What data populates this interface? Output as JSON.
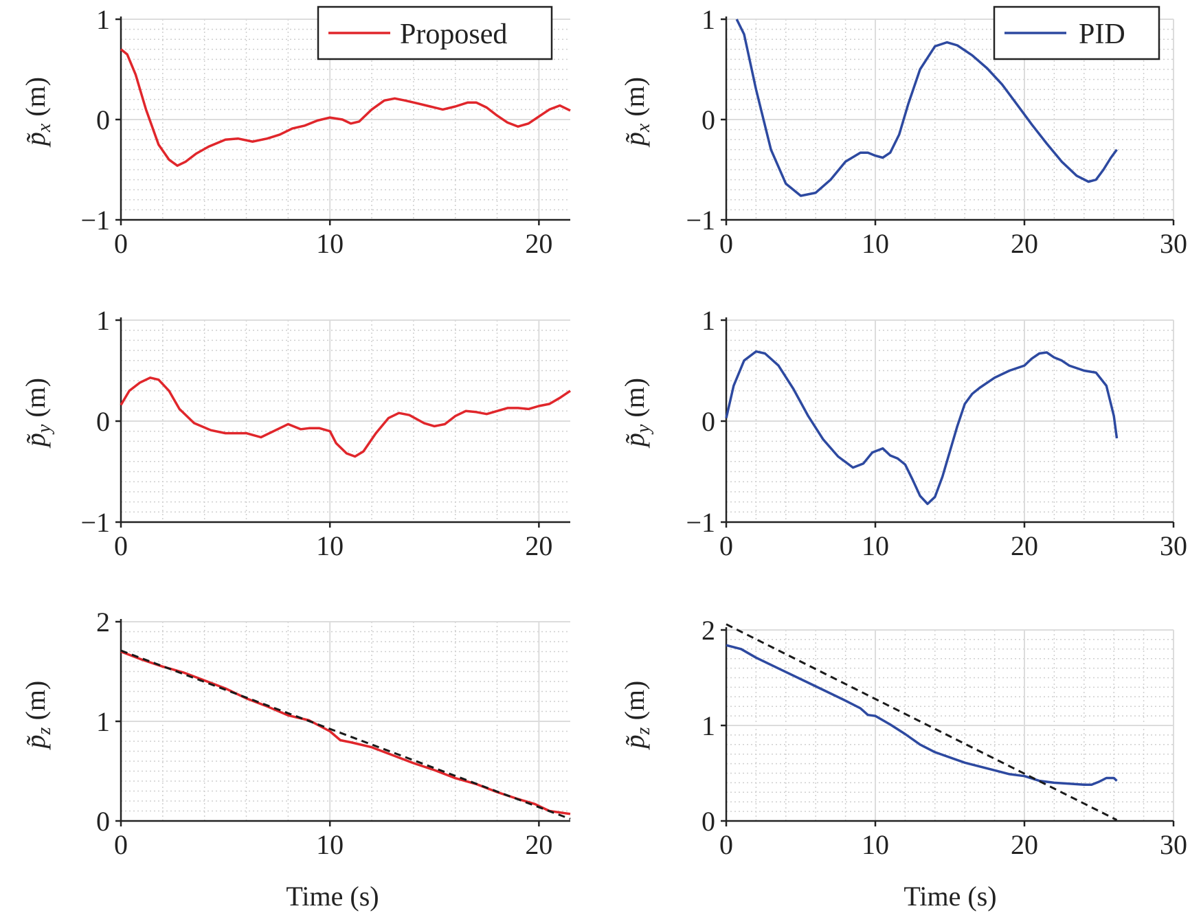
{
  "figure": {
    "legend_proposed": "Proposed",
    "legend_pid": "PID",
    "xlabel": "Time (s)",
    "ylabel_px": "p̃x (m)",
    "ylabel_py": "p̃y (m)",
    "ylabel_pz": "p̃z (m)"
  },
  "colors": {
    "proposed": "#e0262b",
    "pid": "#2d49a0",
    "reference": "#1a1a1a",
    "grid_major": "#dcdcdc",
    "grid_minor": "#cfcfcf"
  },
  "chart_data": [
    {
      "id": "px_proposed",
      "type": "line",
      "xlim": [
        0,
        21.5
      ],
      "ylim": [
        -1,
        1
      ],
      "xticks": [
        0,
        10,
        20
      ],
      "yticks": [
        -1,
        0,
        1
      ],
      "ylabel": "p̃x (m)",
      "xlabel": "",
      "grid": true,
      "legend": {
        "entries": [
          "Proposed"
        ],
        "position": "top-right"
      },
      "series": [
        {
          "name": "Proposed",
          "color": "#e0262b",
          "x": [
            0,
            0.3,
            0.7,
            1.2,
            1.8,
            2.3,
            2.7,
            3.1,
            3.6,
            4.2,
            5.0,
            5.6,
            6.3,
            7.0,
            7.6,
            8.2,
            8.8,
            9.4,
            10.0,
            10.6,
            11.0,
            11.4,
            12.0,
            12.6,
            13.1,
            13.6,
            14.2,
            14.8,
            15.4,
            16.0,
            16.6,
            17.0,
            17.5,
            18.0,
            18.5,
            19.0,
            19.5,
            20.0,
            20.5,
            21.0,
            21.5
          ],
          "y": [
            0.7,
            0.65,
            0.45,
            0.1,
            -0.25,
            -0.4,
            -0.46,
            -0.42,
            -0.34,
            -0.27,
            -0.2,
            -0.19,
            -0.22,
            -0.19,
            -0.15,
            -0.09,
            -0.06,
            -0.01,
            0.02,
            0.0,
            -0.04,
            -0.02,
            0.1,
            0.19,
            0.21,
            0.19,
            0.16,
            0.13,
            0.1,
            0.13,
            0.17,
            0.17,
            0.12,
            0.04,
            -0.03,
            -0.07,
            -0.04,
            0.03,
            0.1,
            0.14,
            0.09
          ]
        }
      ]
    },
    {
      "id": "px_pid",
      "type": "line",
      "xlim": [
        0,
        30
      ],
      "ylim": [
        -1,
        1
      ],
      "xticks": [
        0,
        10,
        20,
        30
      ],
      "yticks": [
        -1,
        0,
        1
      ],
      "ylabel": "p̃x (m)",
      "xlabel": "",
      "grid": true,
      "legend": {
        "entries": [
          "PID"
        ],
        "position": "top-right"
      },
      "series": [
        {
          "name": "PID",
          "color": "#2d49a0",
          "x": [
            0.7,
            1.2,
            2.0,
            3.0,
            4.0,
            5.0,
            6.0,
            7.0,
            8.0,
            9.0,
            9.5,
            10.0,
            10.5,
            11.0,
            11.6,
            12.2,
            13.0,
            14.0,
            14.8,
            15.5,
            16.5,
            17.5,
            18.5,
            19.5,
            20.5,
            21.5,
            22.5,
            23.5,
            24.3,
            24.8,
            25.3,
            25.8,
            26.2
          ],
          "y": [
            1.0,
            0.85,
            0.3,
            -0.3,
            -0.64,
            -0.76,
            -0.73,
            -0.6,
            -0.42,
            -0.33,
            -0.33,
            -0.36,
            -0.38,
            -0.33,
            -0.15,
            0.15,
            0.5,
            0.73,
            0.77,
            0.74,
            0.64,
            0.51,
            0.35,
            0.15,
            -0.05,
            -0.24,
            -0.42,
            -0.56,
            -0.62,
            -0.6,
            -0.5,
            -0.38,
            -0.3
          ]
        }
      ]
    },
    {
      "id": "py_proposed",
      "type": "line",
      "xlim": [
        0,
        21.5
      ],
      "ylim": [
        -1,
        1
      ],
      "xticks": [
        0,
        10,
        20
      ],
      "yticks": [
        -1,
        0,
        1
      ],
      "ylabel": "p̃y (m)",
      "xlabel": "",
      "grid": true,
      "series": [
        {
          "name": "Proposed",
          "color": "#e0262b",
          "x": [
            0,
            0.4,
            0.9,
            1.4,
            1.8,
            2.3,
            2.8,
            3.5,
            4.3,
            5.0,
            6.0,
            6.7,
            7.3,
            8.0,
            8.6,
            9.0,
            9.5,
            10.0,
            10.3,
            10.8,
            11.2,
            11.6,
            12.2,
            12.8,
            13.3,
            13.8,
            14.5,
            15.0,
            15.5,
            16.0,
            16.5,
            17.0,
            17.5,
            18.0,
            18.5,
            19.0,
            19.5,
            20.0,
            20.5,
            21.0,
            21.5
          ],
          "y": [
            0.16,
            0.3,
            0.38,
            0.43,
            0.41,
            0.3,
            0.12,
            -0.02,
            -0.09,
            -0.12,
            -0.12,
            -0.16,
            -0.1,
            -0.03,
            -0.08,
            -0.07,
            -0.07,
            -0.1,
            -0.22,
            -0.32,
            -0.35,
            -0.3,
            -0.12,
            0.03,
            0.08,
            0.06,
            -0.02,
            -0.05,
            -0.03,
            0.05,
            0.1,
            0.09,
            0.07,
            0.1,
            0.13,
            0.13,
            0.12,
            0.15,
            0.17,
            0.23,
            0.3
          ]
        }
      ]
    },
    {
      "id": "py_pid",
      "type": "line",
      "xlim": [
        0,
        30
      ],
      "ylim": [
        -1,
        1
      ],
      "xticks": [
        0,
        10,
        20,
        30
      ],
      "yticks": [
        -1,
        0,
        1
      ],
      "ylabel": "p̃y (m)",
      "xlabel": "",
      "grid": true,
      "series": [
        {
          "name": "PID",
          "color": "#2d49a0",
          "x": [
            0,
            0.5,
            1.2,
            2.0,
            2.6,
            3.5,
            4.5,
            5.5,
            6.5,
            7.5,
            8.5,
            9.2,
            9.8,
            10.5,
            11.0,
            11.5,
            12.0,
            12.5,
            13.0,
            13.5,
            14.0,
            14.5,
            15.0,
            15.5,
            16.0,
            16.5,
            17.0,
            18.0,
            19.0,
            20.0,
            20.5,
            21.0,
            21.5,
            22.0,
            22.5,
            23.0,
            24.0,
            24.8,
            25.5,
            26.0,
            26.2
          ],
          "y": [
            0.03,
            0.35,
            0.6,
            0.69,
            0.67,
            0.55,
            0.32,
            0.05,
            -0.18,
            -0.35,
            -0.46,
            -0.42,
            -0.31,
            -0.27,
            -0.34,
            -0.37,
            -0.43,
            -0.58,
            -0.74,
            -0.82,
            -0.75,
            -0.55,
            -0.3,
            -0.05,
            0.17,
            0.27,
            0.33,
            0.43,
            0.5,
            0.55,
            0.62,
            0.67,
            0.68,
            0.63,
            0.6,
            0.55,
            0.5,
            0.48,
            0.35,
            0.05,
            -0.17
          ]
        }
      ]
    },
    {
      "id": "pz_proposed",
      "type": "line",
      "xlim": [
        0,
        21.5
      ],
      "ylim": [
        0,
        2
      ],
      "xticks": [
        0,
        10,
        20
      ],
      "yticks": [
        0,
        1,
        2
      ],
      "ylabel": "p̃z (m)",
      "xlabel": "Time (s)",
      "grid": true,
      "series": [
        {
          "name": "Proposed",
          "color": "#e0262b",
          "x": [
            0,
            1,
            2,
            3,
            4,
            5,
            6,
            7,
            8,
            9,
            10,
            10.5,
            11,
            12,
            13,
            14,
            15,
            16,
            17,
            18,
            19,
            19.8,
            20.5,
            21.5
          ],
          "y": [
            1.7,
            1.62,
            1.55,
            1.49,
            1.41,
            1.33,
            1.23,
            1.15,
            1.06,
            1.01,
            0.9,
            0.81,
            0.79,
            0.74,
            0.66,
            0.58,
            0.51,
            0.43,
            0.37,
            0.29,
            0.22,
            0.17,
            0.1,
            0.07
          ]
        },
        {
          "name": "",
          "color": "#1a1a1a",
          "dashed": true,
          "x": [
            0,
            21.5
          ],
          "y": [
            1.71,
            0.02
          ]
        }
      ]
    },
    {
      "id": "pz_pid",
      "type": "line",
      "xlim": [
        0,
        30
      ],
      "ylim": [
        0,
        2
      ],
      "xticks": [
        0,
        10,
        20,
        30
      ],
      "yticks": [
        0,
        1,
        2
      ],
      "ylabel": "p̃z (m)",
      "xlabel": "Time (s)",
      "grid": true,
      "series": [
        {
          "name": "PID",
          "color": "#2d49a0",
          "x": [
            0,
            1,
            2,
            4,
            6,
            8,
            9,
            9.5,
            10,
            11,
            12,
            13,
            14,
            16,
            18,
            19,
            20,
            21,
            22,
            23,
            24,
            24.5,
            25,
            25.5,
            26,
            26.2
          ],
          "y": [
            1.84,
            1.8,
            1.71,
            1.56,
            1.41,
            1.26,
            1.18,
            1.11,
            1.1,
            1.01,
            0.91,
            0.8,
            0.72,
            0.61,
            0.53,
            0.49,
            0.47,
            0.42,
            0.4,
            0.39,
            0.38,
            0.38,
            0.41,
            0.45,
            0.45,
            0.42
          ]
        },
        {
          "name": "",
          "color": "#1a1a1a",
          "dashed": true,
          "x": [
            0,
            26.2
          ],
          "y": [
            2.06,
            0.01
          ]
        }
      ]
    }
  ]
}
